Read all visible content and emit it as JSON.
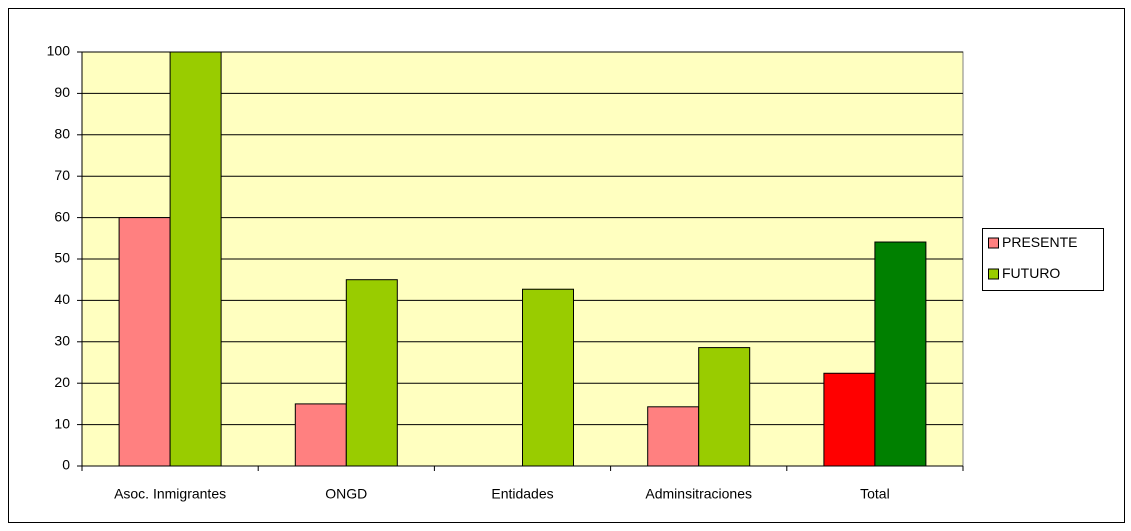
{
  "chart_data": {
    "type": "bar",
    "categories": [
      "Asoc. Inmigrantes",
      "ONGD",
      "Entidades",
      "Adminsitraciones",
      "Total"
    ],
    "series": [
      {
        "name": "PRESENTE",
        "color": "#ff8080",
        "colors": [
          "#ff8080",
          "#ff8080",
          "#ff8080",
          "#ff8080",
          "#ff0000"
        ],
        "values": [
          60,
          15,
          null,
          14.3,
          22.4
        ]
      },
      {
        "name": "FUTURO",
        "color": "#99cc00",
        "colors": [
          "#99cc00",
          "#99cc00",
          "#99cc00",
          "#99cc00",
          "#008000"
        ],
        "values": [
          100,
          45,
          42.7,
          28.6,
          54.1
        ]
      }
    ],
    "ylim": [
      0,
      100
    ],
    "yticks": [
      0,
      10,
      20,
      30,
      40,
      50,
      60,
      70,
      80,
      90,
      100
    ],
    "grid": true,
    "legend": "right",
    "plot_background": "#ffffc0"
  }
}
